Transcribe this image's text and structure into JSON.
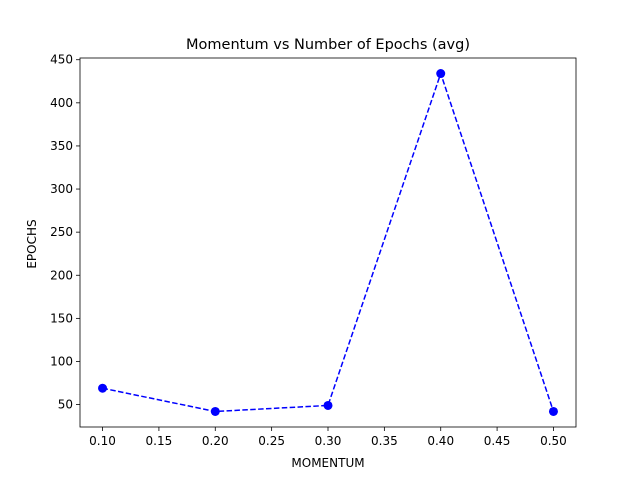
{
  "chart_data": {
    "type": "line",
    "title": "Momentum vs Number of Epochs (avg)",
    "xlabel": "MOMENTUM",
    "ylabel": "EPOCHS",
    "x": [
      0.1,
      0.2,
      0.3,
      0.4,
      0.5
    ],
    "series": [
      {
        "values": [
          69,
          42,
          49,
          434,
          42
        ],
        "color": "#0000ff",
        "line_style": "dashed",
        "marker": "circle"
      }
    ],
    "xlim": [
      0.08,
      0.52
    ],
    "ylim": [
      24,
      452
    ],
    "xticks": [
      0.1,
      0.15,
      0.2,
      0.25,
      0.3,
      0.35,
      0.4,
      0.45,
      0.5
    ],
    "xtick_labels": [
      "0.10",
      "0.15",
      "0.20",
      "0.25",
      "0.30",
      "0.35",
      "0.40",
      "0.45",
      "0.50"
    ],
    "yticks": [
      50,
      100,
      150,
      200,
      250,
      300,
      350,
      400,
      450
    ],
    "ytick_labels": [
      "50",
      "100",
      "150",
      "200",
      "250",
      "300",
      "350",
      "400",
      "450"
    ],
    "grid": false,
    "legend": "none"
  }
}
